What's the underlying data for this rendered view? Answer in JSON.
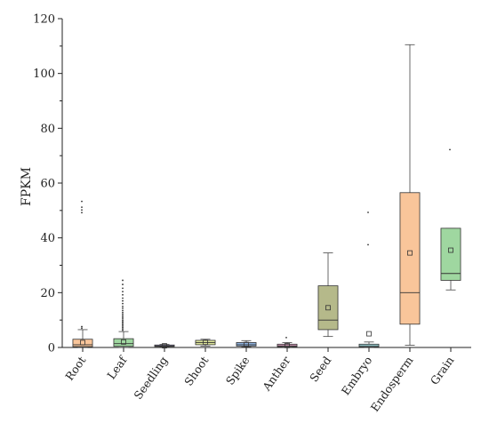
{
  "chart_data": {
    "type": "box",
    "title": "",
    "xlabel": "",
    "ylabel": "FPKM",
    "ylim": [
      0,
      120
    ],
    "yticks": [
      0,
      20,
      40,
      60,
      80,
      100,
      120
    ],
    "grid": false,
    "legend": false,
    "categories": [
      "Root",
      "Leaf",
      "Seedling",
      "Shoot",
      "Spike",
      "Anther",
      "Seed",
      "Embryo",
      "Endosperm",
      "Grain"
    ],
    "boxes": [
      {
        "category": "Root",
        "whisker_low": 0,
        "q1": 0.3,
        "median": 1.0,
        "q3": 3.0,
        "whisker_high": 6.5,
        "mean": 1.8,
        "color": "#f9c59a",
        "outliers": [
          7.0,
          7.6,
          49.2,
          50.2,
          51.2,
          53.3
        ]
      },
      {
        "category": "Leaf",
        "whisker_low": 0,
        "q1": 0.4,
        "median": 1.4,
        "q3": 3.2,
        "whisker_high": 5.8,
        "mean": 2.0,
        "color": "#9fd7a0",
        "outliers": [
          6.3,
          6.8,
          7.3,
          7.8,
          8.3,
          8.8,
          9.3,
          9.8,
          10.4,
          11.0,
          11.6,
          12.2,
          12.8,
          13.5,
          14.3,
          15.0,
          16.0,
          17.0,
          18.0,
          19.2,
          20.4,
          21.6,
          23.0,
          24.5
        ]
      },
      {
        "category": "Seedling",
        "whisker_low": 0.2,
        "q1": 0.35,
        "median": 0.55,
        "q3": 0.9,
        "whisker_high": 1.1,
        "mean": 0.6,
        "color": "#9d98cf",
        "outliers": []
      },
      {
        "category": "Shoot",
        "whisker_low": 0.5,
        "q1": 1.0,
        "median": 1.8,
        "q3": 2.6,
        "whisker_high": 3.0,
        "mean": 1.9,
        "color": "#dce39a",
        "outliers": []
      },
      {
        "category": "Spike",
        "whisker_low": 0.2,
        "q1": 0.5,
        "median": 1.0,
        "q3": 1.8,
        "whisker_high": 2.5,
        "mean": 1.1,
        "color": "#8fb3e0",
        "outliers": []
      },
      {
        "category": "Anther",
        "whisker_low": 0.1,
        "q1": 0.3,
        "median": 0.6,
        "q3": 1.2,
        "whisker_high": 1.8,
        "mean": 0.7,
        "color": "#e8a6c9",
        "outliers": [
          3.6
        ]
      },
      {
        "category": "Seed",
        "whisker_low": 4.0,
        "q1": 6.5,
        "median": 10.0,
        "q3": 22.5,
        "whisker_high": 34.5,
        "mean": 14.5,
        "color": "#b5b98a",
        "outliers": []
      },
      {
        "category": "Embryo",
        "whisker_low": 0,
        "q1": 0.2,
        "median": 0.6,
        "q3": 1.2,
        "whisker_high": 2.0,
        "mean": 5.0,
        "color": "#a3e0e3",
        "outliers": [
          37.5,
          49.3
        ]
      },
      {
        "category": "Endosperm",
        "whisker_low": 0.8,
        "q1": 8.5,
        "median": 20.0,
        "q3": 56.5,
        "whisker_high": 110.5,
        "mean": 34.5,
        "color": "#f9c59a",
        "outliers": []
      },
      {
        "category": "Grain",
        "whisker_low": 21.0,
        "q1": 24.5,
        "median": 27.0,
        "q3": 43.5,
        "whisker_high": 43.5,
        "mean": 35.5,
        "color": "#9fd7a0",
        "outliers": [
          72.2
        ]
      }
    ]
  }
}
